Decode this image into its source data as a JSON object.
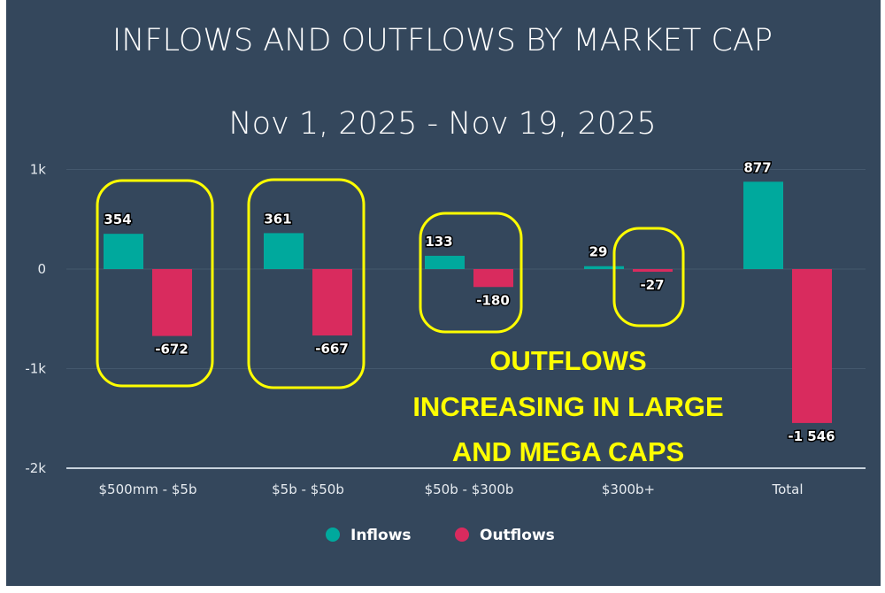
{
  "chart_data": {
    "type": "bar",
    "title": "INFLOWS AND OUTFLOWS BY MARKET CAP",
    "subtitle": "Nov 1, 2025 - Nov 19, 2025",
    "categories": [
      "$500mm - $5b",
      "$5b - $50b",
      "$50b - $300b",
      "$300b+",
      "Total"
    ],
    "series": [
      {
        "name": "Inflows",
        "values": [
          354,
          361,
          133,
          29,
          877
        ],
        "labels": [
          "354",
          "361",
          "133",
          "29",
          "877"
        ],
        "color": "#00a99d"
      },
      {
        "name": "Outflows",
        "values": [
          -672,
          -667,
          -180,
          -27,
          -1546
        ],
        "labels": [
          "-672",
          "-667",
          "-180",
          "-27",
          "-1 546"
        ],
        "color": "#d92b5e"
      }
    ],
    "ylim": [
      -2000,
      1000
    ],
    "yticks": [
      {
        "v": 1000,
        "label": "1k"
      },
      {
        "v": 0,
        "label": "0"
      },
      {
        "v": -1000,
        "label": "-1k"
      },
      {
        "v": -2000,
        "label": "-2k"
      }
    ],
    "grid": true,
    "legend": "bottom",
    "annotation": [
      "OUTFLOWS",
      "INCREASING IN LARGE",
      "AND MEGA CAPS"
    ],
    "annotation_color": "#ffff00",
    "highlighted_categories": [
      0,
      1,
      2,
      3
    ]
  }
}
